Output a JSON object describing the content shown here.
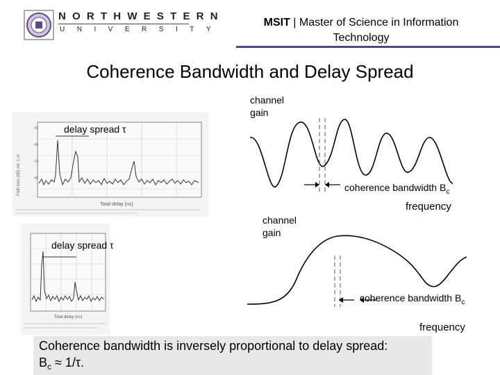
{
  "header": {
    "university_name": "NORTHWESTERN",
    "university_word": "UNIVERSITY",
    "program_abbr": "MSIT",
    "program_separator": " | ",
    "program_name": "Master of Science in Information Technology"
  },
  "slide": {
    "title": "Coherence Bandwidth and Delay Spread"
  },
  "figure_left": {
    "top_annotation": "delay spread τ",
    "bottom_annotation": "delay spread τ"
  },
  "figure_right_top": {
    "y_label_line1": "channel",
    "y_label_line2": "gain",
    "bandwidth_label": "coherence bandwidth B",
    "bandwidth_sub": "c",
    "x_label": "frequency"
  },
  "figure_right_bottom": {
    "y_label_line1": "channel",
    "y_label_line2": "gain",
    "bandwidth_label": "coherence bandwidth B",
    "bandwidth_sub": "c",
    "x_label": "frequency"
  },
  "footer": {
    "line1": "Coherence bandwidth is inversely proportional to delay spread:",
    "line2_prefix": "B",
    "line2_sub": "c",
    "line2_suffix": " ≈ 1/τ."
  },
  "colors": {
    "header_rule": "#4a4a8c",
    "footer_bg": "#e8e8e8"
  }
}
